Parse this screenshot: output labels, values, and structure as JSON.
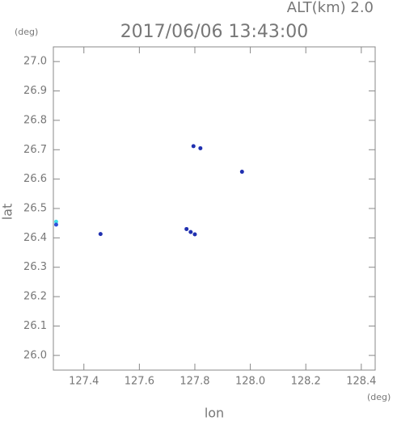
{
  "chart_data": {
    "type": "scatter",
    "title": "2017/06/06 13:43:00",
    "subtitle": "ALT(km) 2.0",
    "y_unit": "(deg)",
    "x_unit": "(deg)",
    "xlabel": "lon",
    "ylabel": "lat",
    "x": [
      127.3,
      127.3,
      127.46,
      127.77,
      127.785,
      127.8,
      127.795,
      127.82,
      127.97
    ],
    "values": [
      26.455,
      26.445,
      26.413,
      26.43,
      26.42,
      26.412,
      26.712,
      26.705,
      26.625
    ],
    "colors": [
      "#40e0e8",
      "#3050d8",
      "#2030b0",
      "#2030b0",
      "#2030b0",
      "#2030b0",
      "#2030b0",
      "#2030b0",
      "#2030b0"
    ],
    "xlim": [
      127.29,
      128.45
    ],
    "ylim": [
      25.95,
      27.05
    ],
    "xticks": [
      127.4,
      127.6,
      127.8,
      {
        "value": 128.0,
        "label": "128.0"
      },
      128.2,
      128.4
    ],
    "yticks": [
      {
        "value": 26.0,
        "label": "26.0"
      },
      26.1,
      26.2,
      26.3,
      26.4,
      26.5,
      26.6,
      26.7,
      26.8,
      26.9,
      {
        "value": 27.0,
        "label": "27.0"
      }
    ],
    "grid": false
  }
}
